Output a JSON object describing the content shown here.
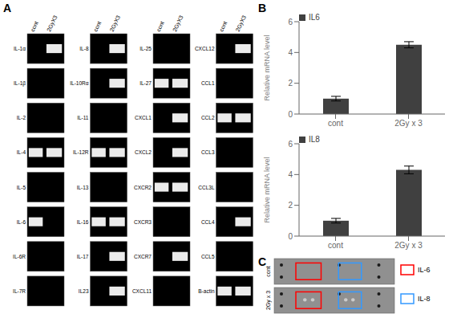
{
  "chart_data": [
    {
      "type": "gel",
      "title": "A",
      "columns": [
        {
          "categories": [
            "cont",
            "2GyX3"
          ],
          "rows": [
            "IL-1α",
            "IL-1β",
            "IL-2",
            "IL-4",
            "IL-5",
            "IL-6",
            "IL-6R",
            "IL-7R"
          ],
          "bands": [
            [
              false,
              true
            ],
            [
              false,
              false
            ],
            [
              false,
              false
            ],
            [
              true,
              true
            ],
            [
              false,
              false
            ],
            [
              true,
              false
            ],
            [
              false,
              false
            ],
            [
              false,
              false
            ]
          ]
        },
        {
          "categories": [
            "cont",
            "2GyX3"
          ],
          "rows": [
            "IL-8",
            "IL-10Rα",
            "IL-11",
            "IL-12R",
            "IL-13",
            "IL-16",
            "IL-17",
            "IL23"
          ],
          "bands": [
            [
              false,
              true
            ],
            [
              false,
              true
            ],
            [
              false,
              false
            ],
            [
              true,
              true
            ],
            [
              false,
              false
            ],
            [
              true,
              true
            ],
            [
              false,
              true
            ],
            [
              false,
              true
            ]
          ]
        },
        {
          "categories": [
            "cont",
            "2GyX3"
          ],
          "rows": [
            "IL-25",
            "IL-27",
            "CXCL1",
            "CXCL2",
            "CXCR2",
            "CXCR3",
            "CXCR7",
            "CXCL11"
          ],
          "bands": [
            [
              false,
              false
            ],
            [
              true,
              true
            ],
            [
              false,
              true
            ],
            [
              false,
              true
            ],
            [
              true,
              true
            ],
            [
              false,
              false
            ],
            [
              false,
              true
            ],
            [
              false,
              false
            ]
          ]
        },
        {
          "categories": [
            "cont",
            "2GyX3"
          ],
          "rows": [
            "CXCL12",
            "CCL1",
            "CCL2",
            "CCL3",
            "CCL3L",
            "CCL4",
            "CCL5",
            "B-actin"
          ],
          "bands": [
            [
              false,
              true
            ],
            [
              false,
              false
            ],
            [
              true,
              true
            ],
            [
              false,
              false
            ],
            [
              false,
              false
            ],
            [
              false,
              true
            ],
            [
              false,
              false
            ],
            [
              true,
              true
            ]
          ]
        }
      ]
    },
    {
      "type": "bar",
      "title": "B",
      "categories": [
        "cont",
        "2Gy x 3"
      ],
      "series": [
        {
          "name": "IL6",
          "color": "#404040",
          "values": [
            1.0,
            4.5
          ],
          "errors": [
            0.15,
            0.2
          ]
        }
      ],
      "ylabel": "Relative mRNA level",
      "ylim": [
        0,
        6
      ],
      "yticks": [
        0,
        2,
        4,
        6
      ],
      "legend": "upper left"
    },
    {
      "type": "bar",
      "categories": [
        "cont",
        "2Gy x 3"
      ],
      "series": [
        {
          "name": "IL8",
          "color": "#404040",
          "values": [
            1.0,
            4.3
          ],
          "errors": [
            0.15,
            0.25
          ]
        }
      ],
      "ylabel": "Relative mRNA level",
      "ylim": [
        0,
        6
      ],
      "yticks": [
        0,
        2,
        4,
        6
      ],
      "legend": "upper left"
    },
    {
      "type": "blot",
      "title": "C",
      "rows": [
        "cont",
        "2Gy x 3"
      ],
      "color": "#909090",
      "series": [
        {
          "name": "IL-6",
          "color": "red"
        },
        {
          "name": "IL-8",
          "color": "#3399ff"
        }
      ]
    }
  ]
}
